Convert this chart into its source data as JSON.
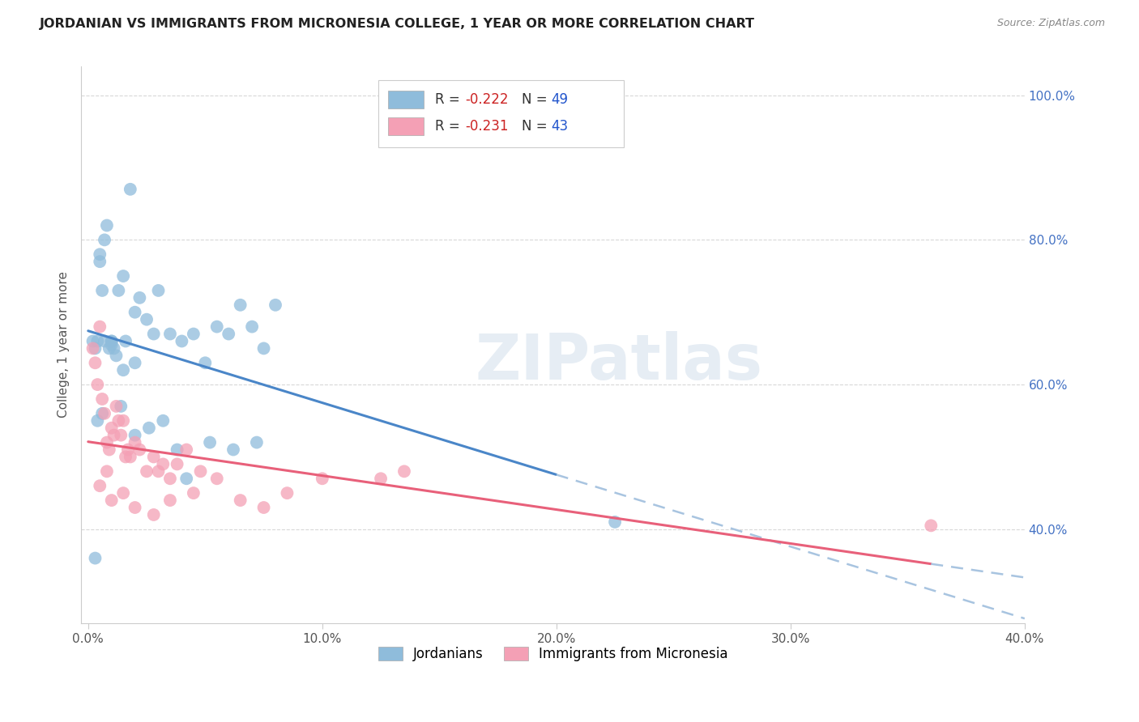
{
  "title": "JORDANIAN VS IMMIGRANTS FROM MICRONESIA COLLEGE, 1 YEAR OR MORE CORRELATION CHART",
  "source": "Source: ZipAtlas.com",
  "ylabel_left": "College, 1 year or more",
  "ylabel_right_ticks": [
    40.0,
    60.0,
    80.0,
    100.0
  ],
  "xlabel_bottom_ticks": [
    0.0,
    10.0,
    20.0,
    30.0,
    40.0
  ],
  "xlim": [
    -0.3,
    40.0
  ],
  "ylim": [
    27.0,
    104.0
  ],
  "blue_R": -0.222,
  "blue_N": 49,
  "pink_R": -0.231,
  "pink_N": 43,
  "blue_color": "#8fbcdb",
  "pink_color": "#f4a0b5",
  "blue_line_color": "#4a86c8",
  "pink_line_color": "#e8607a",
  "dashed_line_color": "#a8c4e0",
  "watermark": "ZIPatlas",
  "blue_solid_xmax": 20.0,
  "pink_solid_xmax": 36.0,
  "blue_dots_x": [
    0.2,
    0.3,
    0.4,
    0.5,
    0.5,
    0.6,
    0.7,
    0.7,
    0.8,
    0.9,
    1.0,
    1.0,
    1.1,
    1.2,
    1.3,
    1.5,
    1.6,
    1.8,
    2.0,
    2.2,
    2.5,
    2.8,
    3.0,
    3.5,
    4.0,
    4.5,
    5.0,
    5.5,
    6.0,
    6.5,
    7.0,
    7.5,
    8.0,
    3.2,
    0.4,
    0.6,
    1.0,
    1.4,
    2.0,
    2.6,
    3.8,
    4.2,
    5.2,
    6.2,
    7.2,
    1.5,
    2.0,
    22.5,
    0.3
  ],
  "blue_dots_y": [
    66.0,
    65.0,
    66.0,
    78.0,
    77.0,
    73.0,
    80.0,
    66.0,
    82.0,
    65.0,
    66.0,
    65.5,
    65.0,
    64.0,
    73.0,
    75.0,
    66.0,
    87.0,
    70.0,
    72.0,
    69.0,
    67.0,
    73.0,
    67.0,
    66.0,
    67.0,
    63.0,
    68.0,
    67.0,
    71.0,
    68.0,
    65.0,
    71.0,
    55.0,
    55.0,
    56.0,
    66.0,
    57.0,
    53.0,
    54.0,
    51.0,
    47.0,
    52.0,
    51.0,
    52.0,
    62.0,
    63.0,
    41.0,
    36.0
  ],
  "pink_dots_x": [
    0.2,
    0.3,
    0.4,
    0.5,
    0.6,
    0.7,
    0.8,
    0.9,
    1.0,
    1.1,
    1.2,
    1.3,
    1.4,
    1.5,
    1.6,
    1.7,
    1.8,
    2.0,
    2.2,
    2.5,
    2.8,
    3.0,
    3.2,
    3.5,
    3.8,
    4.2,
    4.8,
    5.5,
    6.5,
    7.5,
    8.5,
    10.0,
    12.5,
    13.5,
    0.5,
    0.8,
    36.0,
    1.0,
    1.5,
    2.0,
    2.8,
    3.5,
    4.5
  ],
  "pink_dots_y": [
    65.0,
    63.0,
    60.0,
    68.0,
    58.0,
    56.0,
    52.0,
    51.0,
    54.0,
    53.0,
    57.0,
    55.0,
    53.0,
    55.0,
    50.0,
    51.0,
    50.0,
    52.0,
    51.0,
    48.0,
    50.0,
    48.0,
    49.0,
    47.0,
    49.0,
    51.0,
    48.0,
    47.0,
    44.0,
    43.0,
    45.0,
    47.0,
    47.0,
    48.0,
    46.0,
    48.0,
    40.5,
    44.0,
    45.0,
    43.0,
    42.0,
    44.0,
    45.0
  ]
}
